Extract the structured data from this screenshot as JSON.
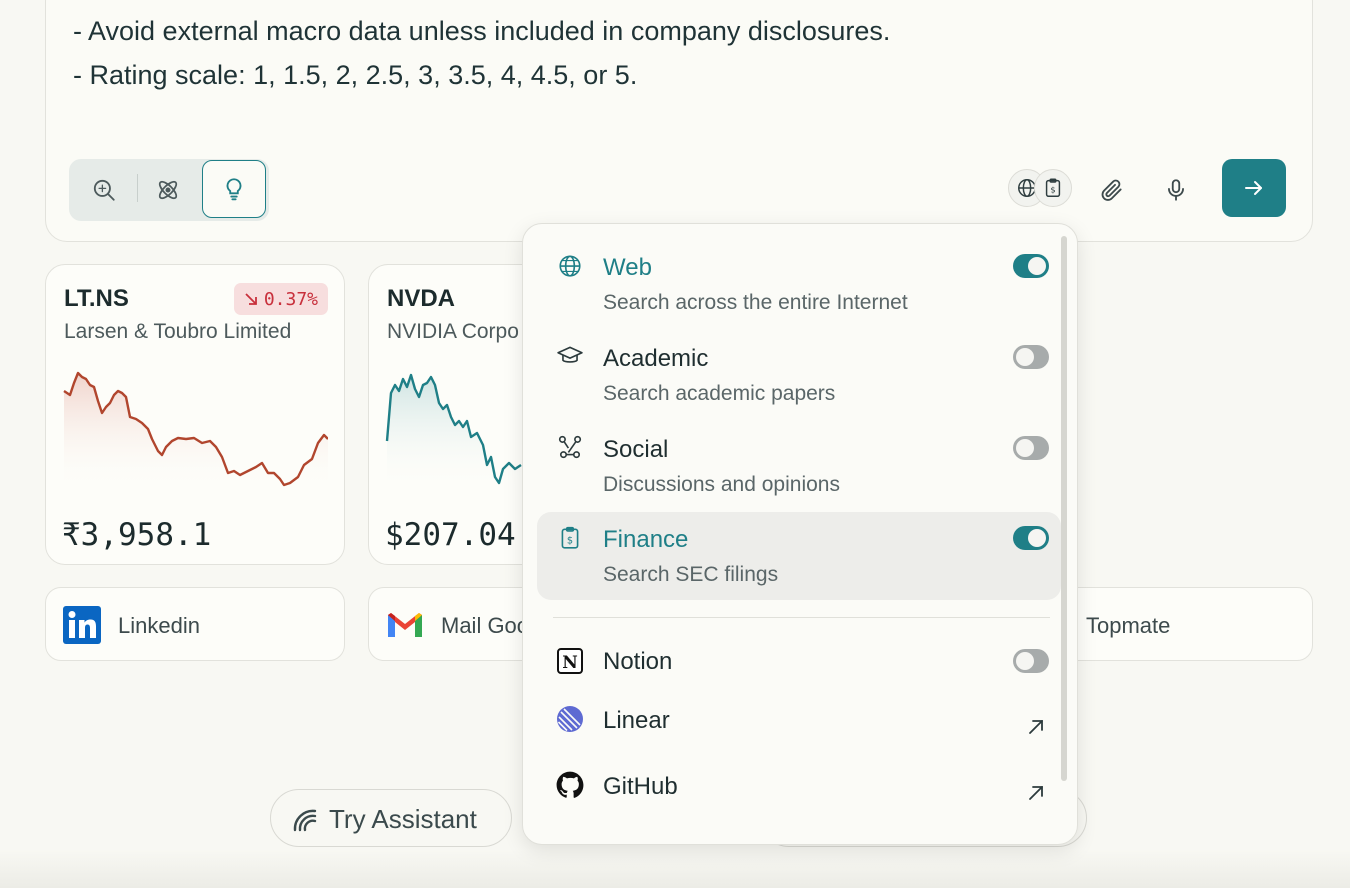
{
  "query": {
    "lines": [
      "- Avoid external macro data unless included in company disclosures.",
      "- Rating scale: 1, 1.5, 2, 2.5, 3, 3.5, 4, 4.5, or 5."
    ]
  },
  "toolbar": {
    "modes": [
      "search",
      "research",
      "reason"
    ],
    "selected_mode": "reason",
    "accent_color": "#1f7f87"
  },
  "stocks": [
    {
      "ticker": "LT.NS",
      "company": "Larsen & Toubro Limited",
      "change": "0.37%",
      "direction": "down",
      "price": "₹3,958.1",
      "line_color": "#b1462e"
    },
    {
      "ticker": "NVDA",
      "company": "NVIDIA Corpo",
      "price": "$207.04",
      "line_color": "#1f7f87"
    }
  ],
  "connectors": [
    {
      "label": "Linkedin",
      "icon": "linkedin-logo"
    },
    {
      "label": "Mail Goo",
      "icon": "gmail-logo"
    },
    {
      "label": "Topmate",
      "icon": "topmate-logo"
    }
  ],
  "pills": [
    {
      "label": "Try Assistant",
      "icon": "assistant-icon"
    }
  ],
  "sources_menu": {
    "items": [
      {
        "title": "Web",
        "subtitle": "Search across the entire Internet",
        "icon": "globe-icon",
        "enabled": true
      },
      {
        "title": "Academic",
        "subtitle": "Search academic papers",
        "icon": "graduation-cap-icon",
        "enabled": false
      },
      {
        "title": "Social",
        "subtitle": "Discussions and opinions",
        "icon": "social-network-icon",
        "enabled": false
      },
      {
        "title": "Finance",
        "subtitle": "Search SEC filings",
        "icon": "finance-clipboard-icon",
        "enabled": true
      }
    ],
    "integrations": [
      {
        "title": "Notion",
        "icon": "notion-logo",
        "type": "toggle",
        "enabled": false
      },
      {
        "title": "Linear",
        "icon": "linear-logo",
        "type": "link"
      },
      {
        "title": "GitHub",
        "icon": "github-logo",
        "type": "link"
      }
    ]
  }
}
